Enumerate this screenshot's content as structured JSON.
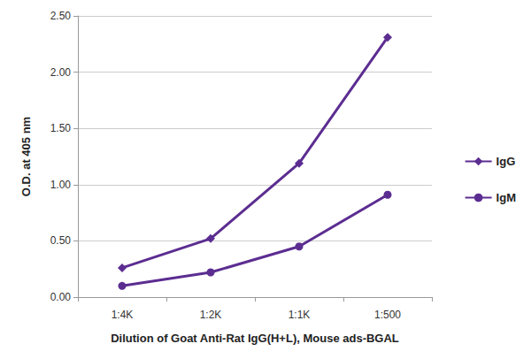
{
  "chart_data": {
    "type": "line",
    "x_label": "Dilution of Goat Anti-Rat IgG(H+L), Mouse ads-BGAL",
    "y_label": "O.D. at 405 nm",
    "categories": [
      "1:4K",
      "1:2K",
      "1:1K",
      "1:500"
    ],
    "series": [
      {
        "name": "IgG",
        "color": "#5c2d91",
        "marker": "diamond",
        "values": [
          0.26,
          0.52,
          1.19,
          2.31
        ]
      },
      {
        "name": "IgM",
        "color": "#5c2d91",
        "marker": "circle",
        "values": [
          0.1,
          0.22,
          0.45,
          0.91
        ]
      }
    ],
    "ylim": [
      0,
      2.5
    ],
    "yticks": [
      {
        "value": 0,
        "label": "0.00"
      },
      {
        "value": 0.5,
        "label": "0.50"
      },
      {
        "value": 1,
        "label": "1.00"
      },
      {
        "value": 1.5,
        "label": "1.50"
      },
      {
        "value": 2,
        "label": "2.00"
      },
      {
        "value": 2.5,
        "label": "2.50"
      }
    ],
    "grid": true,
    "legend": "right"
  }
}
